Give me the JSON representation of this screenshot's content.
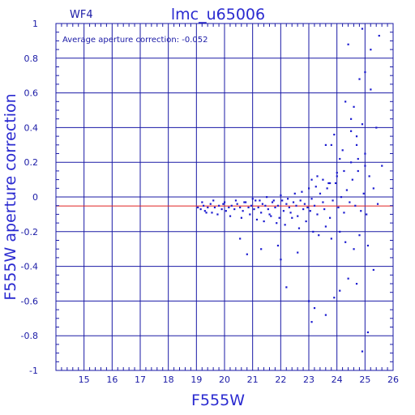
{
  "chart_data": {
    "type": "scatter",
    "title": "lmc_u65006",
    "chip_label": "WF4",
    "annotation": "Average aperture correction: -0.052",
    "xlabel": "F555W",
    "ylabel": "F555W aperture correction",
    "xlim": [
      14,
      26
    ],
    "ylim": [
      -1,
      1
    ],
    "x_ticks": [
      "15",
      "16",
      "17",
      "18",
      "19",
      "20",
      "21",
      "22",
      "23",
      "24",
      "25",
      "26"
    ],
    "y_ticks": [
      "-1",
      "-0.8",
      "-0.6",
      "-0.4",
      "-0.2",
      "0",
      "0.2",
      "0.4",
      "0.6",
      "0.8",
      "1"
    ],
    "grid": true,
    "reference_line": {
      "y": -0.052,
      "color": "#e02020"
    },
    "zero_line": {
      "y": 0,
      "color": "#1a1aa6"
    },
    "colors": {
      "axis": "#1a1aa6",
      "points": "#1a1ad0",
      "reference": "#e02020"
    },
    "series": [
      {
        "x": [
          19.05,
          19.15,
          19.25,
          19.3,
          19.4,
          19.5,
          19.55,
          19.65,
          19.8,
          19.9,
          20.0,
          20.05,
          20.15,
          20.25,
          20.35,
          20.45,
          20.55,
          20.65,
          20.75,
          20.85,
          20.95,
          21.05,
          21.1,
          21.2,
          21.3,
          21.35,
          21.45,
          21.55,
          21.6,
          21.7,
          21.8,
          21.9,
          21.95,
          22.05,
          22.1,
          22.2,
          22.3,
          22.35,
          22.45,
          22.55,
          22.6,
          22.7,
          22.8,
          22.85,
          22.95,
          23.05,
          23.1,
          23.2,
          23.3,
          23.4,
          23.5,
          23.55,
          23.65,
          23.75,
          23.85,
          23.95,
          24.05,
          24.15,
          24.25,
          24.35,
          24.45,
          24.55,
          24.65,
          24.75,
          24.85,
          24.95,
          25.05,
          25.15,
          25.3,
          25.45,
          25.6,
          19.2,
          19.6,
          19.95,
          20.4,
          20.7,
          21.0,
          21.25,
          21.5,
          21.75,
          22.0,
          22.25,
          22.5,
          22.75,
          23.0,
          23.25,
          23.5,
          23.75,
          24.0,
          24.25,
          24.5,
          24.75,
          25.0,
          19.35,
          19.75,
          20.2,
          20.6,
          20.9,
          21.15,
          21.4,
          21.65,
          21.85,
          22.15,
          22.4,
          22.65,
          22.9,
          23.15,
          23.35,
          23.6,
          23.8,
          24.1,
          24.3,
          24.6,
          24.8,
          25.1,
          20.55,
          20.8,
          21.3,
          21.9,
          22.0,
          22.2,
          22.6,
          23.0,
          23.1,
          23.2,
          23.6,
          23.9,
          24.1,
          24.4,
          24.7,
          24.9,
          25.1,
          25.3,
          23.1,
          23.3,
          23.6,
          23.9,
          24.2,
          24.5,
          24.7,
          24.9,
          25.2,
          25.4,
          23.7,
          24.1,
          24.3,
          24.5,
          24.6,
          24.8,
          25.0,
          25.2,
          25.5,
          24.9,
          24.4,
          23.8,
          24.0,
          24.7,
          25.0
        ],
        "y": [
          -0.06,
          -0.07,
          -0.05,
          -0.08,
          -0.06,
          -0.04,
          -0.09,
          -0.06,
          -0.05,
          -0.07,
          -0.03,
          -0.08,
          -0.06,
          -0.05,
          -0.07,
          -0.04,
          -0.06,
          -0.08,
          -0.03,
          -0.06,
          -0.05,
          -0.07,
          -0.02,
          -0.06,
          -0.09,
          -0.04,
          -0.05,
          -0.07,
          -0.1,
          -0.03,
          -0.06,
          -0.05,
          -0.12,
          -0.02,
          -0.08,
          -0.04,
          -0.06,
          -0.09,
          -0.03,
          -0.05,
          -0.11,
          -0.02,
          -0.07,
          -0.04,
          -0.06,
          -0.08,
          -0.01,
          -0.05,
          -0.1,
          0.02,
          -0.03,
          -0.07,
          0.05,
          -0.12,
          -0.02,
          0.08,
          -0.06,
          0.0,
          -0.09,
          0.04,
          -0.03,
          0.1,
          -0.05,
          0.15,
          -0.08,
          0.02,
          -0.1,
          0.12,
          0.05,
          -0.04,
          0.18,
          -0.03,
          -0.02,
          -0.04,
          -0.02,
          -0.03,
          -0.01,
          -0.02,
          -0.0,
          -0.02,
          0.01,
          -0.01,
          0.02,
          0.03,
          0.05,
          0.06,
          0.1,
          0.08,
          0.12,
          0.15,
          0.2,
          0.22,
          0.25,
          -0.09,
          -0.1,
          -0.11,
          -0.12,
          -0.1,
          -0.13,
          -0.14,
          -0.11,
          -0.15,
          -0.16,
          -0.12,
          -0.18,
          -0.14,
          -0.2,
          -0.22,
          -0.17,
          -0.24,
          -0.2,
          -0.26,
          -0.3,
          -0.22,
          -0.28,
          -0.24,
          -0.33,
          -0.3,
          -0.28,
          -0.36,
          -0.52,
          -0.32,
          -0.6,
          -0.72,
          -0.64,
          -0.68,
          -0.58,
          -0.54,
          -0.47,
          -0.5,
          -0.89,
          -0.78,
          -0.42,
          0.1,
          0.12,
          0.3,
          0.36,
          0.27,
          0.38,
          0.3,
          0.42,
          0.62,
          0.4,
          0.08,
          0.22,
          0.55,
          0.45,
          0.52,
          0.68,
          0.72,
          0.85,
          0.93,
          0.97,
          0.88,
          0.3,
          0.14,
          0.35,
          0.18
        ]
      }
    ]
  }
}
